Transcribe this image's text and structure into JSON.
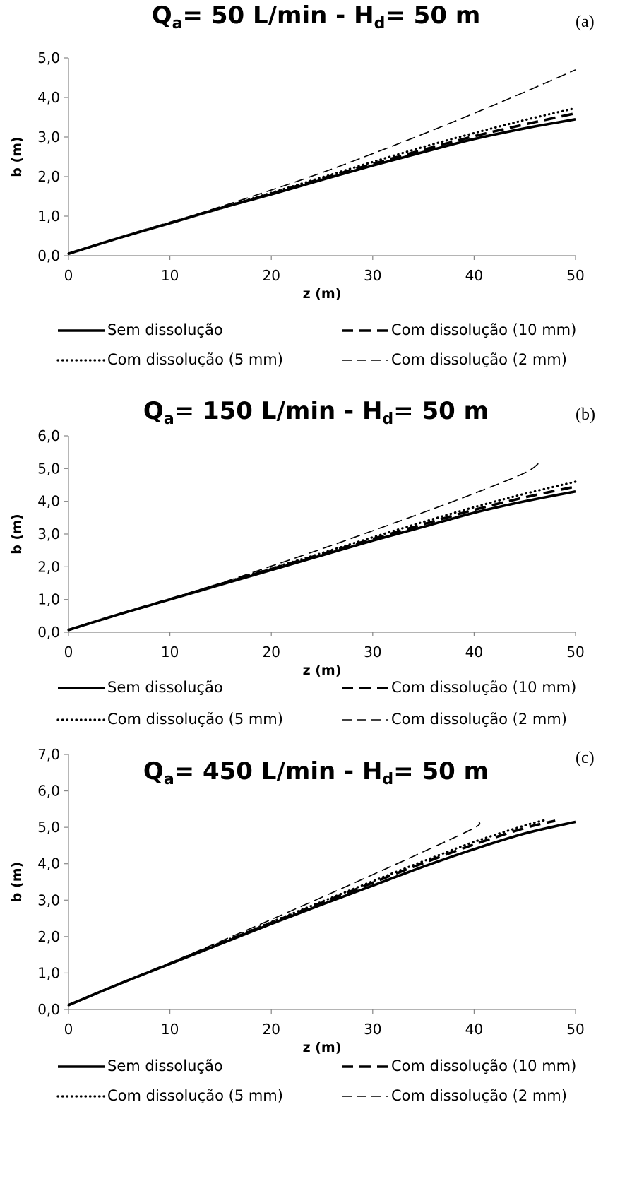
{
  "legend_labels": {
    "sem": "Sem dissolução",
    "d10": "Com dissolução (10 mm)",
    "d5": "Com dissolução (5 mm)",
    "d2": "Com dissolução (2 mm)"
  },
  "chart_data": [
    {
      "type": "line",
      "title_prefix": "Q",
      "title_sub1": "a",
      "title_mid": "= 50 L/min - H",
      "title_sub2": "d",
      "title_suffix": "= 50 m",
      "panel_letter": "(a)",
      "xlabel": "z (m)",
      "ylabel": "b (m)",
      "xlim": [
        0,
        50
      ],
      "ylim": [
        0,
        5
      ],
      "xticks": [
        "0",
        "10",
        "20",
        "30",
        "40",
        "50"
      ],
      "yticks": [
        "0,0",
        "1,0",
        "2,0",
        "3,0",
        "4,0",
        "5,0"
      ],
      "legend_position": "bottom",
      "series": [
        {
          "key": "sem",
          "x": [
            0,
            5,
            10,
            15,
            20,
            25,
            30,
            35,
            40,
            45,
            50
          ],
          "y": [
            0.05,
            0.45,
            0.82,
            1.2,
            1.55,
            1.92,
            2.28,
            2.62,
            2.95,
            3.22,
            3.45
          ]
        },
        {
          "key": "d10",
          "x": [
            0,
            5,
            10,
            15,
            20,
            25,
            30,
            35,
            40,
            45,
            50
          ],
          "y": [
            0.05,
            0.45,
            0.83,
            1.2,
            1.57,
            1.95,
            2.32,
            2.68,
            3.02,
            3.32,
            3.6
          ]
        },
        {
          "key": "d5",
          "x": [
            0,
            5,
            10,
            15,
            20,
            25,
            30,
            35,
            40,
            45,
            50
          ],
          "y": [
            0.05,
            0.45,
            0.83,
            1.21,
            1.59,
            1.98,
            2.37,
            2.75,
            3.1,
            3.43,
            3.73
          ]
        },
        {
          "key": "d2",
          "x": [
            0,
            5,
            10,
            15,
            20,
            25,
            30,
            35,
            40,
            45,
            50
          ],
          "y": [
            0.05,
            0.45,
            0.84,
            1.24,
            1.66,
            2.1,
            2.58,
            3.08,
            3.6,
            4.14,
            4.7
          ]
        }
      ]
    },
    {
      "type": "line",
      "title_prefix": "Q",
      "title_sub1": "a",
      "title_mid": "= 150 L/min - H",
      "title_sub2": "d",
      "title_suffix": "= 50 m",
      "panel_letter": "(b)",
      "xlabel": "z (m)",
      "ylabel": "b (m)",
      "xlim": [
        0,
        50
      ],
      "ylim": [
        0,
        6
      ],
      "xticks": [
        "0",
        "10",
        "20",
        "30",
        "40",
        "50"
      ],
      "yticks": [
        "0,0",
        "1,0",
        "2,0",
        "3,0",
        "4,0",
        "5,0",
        "6,0"
      ],
      "legend_position": "bottom",
      "series": [
        {
          "key": "sem",
          "x": [
            0,
            5,
            10,
            15,
            20,
            25,
            30,
            35,
            40,
            45,
            50
          ],
          "y": [
            0.07,
            0.55,
            1.0,
            1.45,
            1.9,
            2.35,
            2.8,
            3.22,
            3.65,
            4.0,
            4.3
          ]
        },
        {
          "key": "d10",
          "x": [
            0,
            5,
            10,
            15,
            20,
            25,
            30,
            35,
            40,
            45,
            50
          ],
          "y": [
            0.07,
            0.55,
            1.01,
            1.47,
            1.93,
            2.39,
            2.85,
            3.3,
            3.74,
            4.12,
            4.45
          ]
        },
        {
          "key": "d5",
          "x": [
            0,
            5,
            10,
            15,
            20,
            25,
            30,
            35,
            40,
            45,
            50
          ],
          "y": [
            0.07,
            0.55,
            1.01,
            1.48,
            1.95,
            2.42,
            2.9,
            3.37,
            3.82,
            4.23,
            4.6
          ]
        },
        {
          "key": "d2",
          "x": [
            0,
            5,
            10,
            15,
            20,
            25,
            30,
            35,
            40,
            45,
            46.5
          ],
          "y": [
            0.07,
            0.56,
            1.02,
            1.5,
            2.02,
            2.55,
            3.1,
            3.66,
            4.24,
            4.87,
            5.2
          ]
        }
      ]
    },
    {
      "type": "line",
      "title_prefix": "Q",
      "title_sub1": "a",
      "title_mid": "= 450 L/min - H",
      "title_sub2": "d",
      "title_suffix": "= 50 m",
      "panel_letter": "(c)",
      "xlabel": "z (m)",
      "ylabel": "b (m)",
      "xlim": [
        0,
        50
      ],
      "ylim": [
        0,
        7
      ],
      "xticks": [
        "0",
        "10",
        "20",
        "30",
        "40",
        "50"
      ],
      "yticks": [
        "0,0",
        "1,0",
        "2,0",
        "3,0",
        "4,0",
        "5,0",
        "6,0",
        "7,0"
      ],
      "legend_position": "bottom",
      "series": [
        {
          "key": "sem",
          "x": [
            0,
            5,
            10,
            15,
            20,
            25,
            30,
            35,
            40,
            45,
            50
          ],
          "y": [
            0.12,
            0.7,
            1.25,
            1.8,
            2.35,
            2.88,
            3.4,
            3.92,
            4.4,
            4.83,
            5.15
          ]
        },
        {
          "key": "d10",
          "x": [
            0,
            5,
            10,
            15,
            20,
            25,
            30,
            35,
            40,
            45,
            48
          ],
          "y": [
            0.12,
            0.7,
            1.26,
            1.82,
            2.38,
            2.93,
            3.48,
            4.02,
            4.53,
            4.98,
            5.18
          ]
        },
        {
          "key": "d5",
          "x": [
            0,
            5,
            10,
            15,
            20,
            25,
            30,
            35,
            40,
            45,
            47
          ],
          "y": [
            0.12,
            0.7,
            1.26,
            1.83,
            2.4,
            2.96,
            3.52,
            4.07,
            4.6,
            5.05,
            5.2
          ]
        },
        {
          "key": "d2",
          "x": [
            0,
            5,
            10,
            15,
            20,
            25,
            30,
            35,
            40,
            40.5
          ],
          "y": [
            0.12,
            0.71,
            1.28,
            1.87,
            2.47,
            3.08,
            3.7,
            4.33,
            4.98,
            5.15
          ]
        }
      ]
    }
  ]
}
